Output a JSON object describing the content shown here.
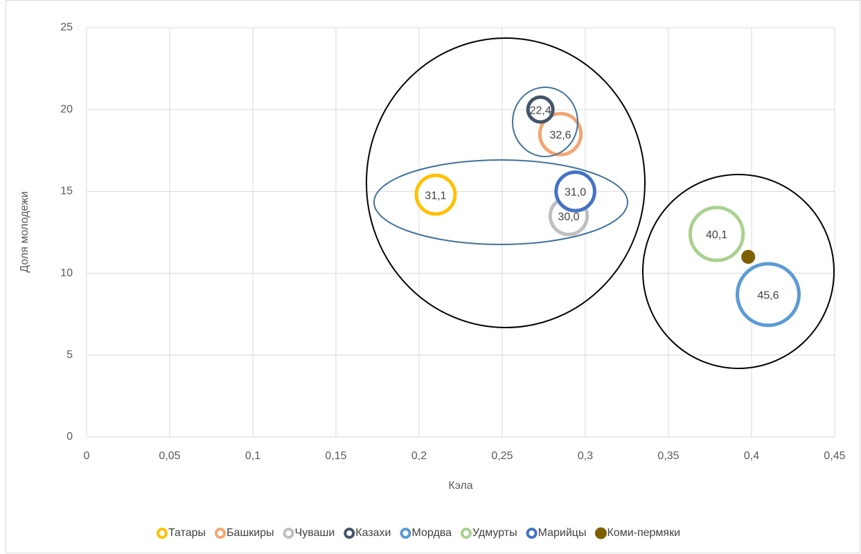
{
  "chart_data": {
    "type": "bubble",
    "x_label": "Кэла",
    "y_label": "Доля молодежи",
    "xlim": [
      0,
      0.45
    ],
    "xticks": [
      0,
      {
        "value": 0.05,
        "label": "0,05"
      },
      {
        "value": 0.1,
        "label": "0,1"
      },
      {
        "value": 0.15,
        "label": "0,15"
      },
      {
        "value": 0.2,
        "label": "0,2"
      },
      {
        "value": 0.25,
        "label": "0,25"
      },
      {
        "value": 0.3,
        "label": "0,3"
      },
      {
        "value": 0.35,
        "label": "0,35"
      },
      {
        "value": 0.4,
        "label": "0,4"
      },
      {
        "value": 0.45,
        "label": "0,45"
      }
    ],
    "ylim": [
      0,
      25
    ],
    "yticks": [
      0,
      5,
      10,
      15,
      20,
      25
    ],
    "grid": true,
    "legend": "bottom",
    "series": [
      {
        "name": "Татары",
        "color": "#ffc000",
        "x": [
          0.21
        ],
        "values": [
          14.8
        ],
        "sizes": [
          31.1
        ],
        "value_labels": [
          "31,1"
        ]
      },
      {
        "name": "Башкиры",
        "color": "#f4a672",
        "x": [
          0.285
        ],
        "values": [
          18.5
        ],
        "sizes": [
          32.6
        ],
        "value_labels": [
          "32,6"
        ]
      },
      {
        "name": "Чуваши",
        "color": "#bfbfbf",
        "x": [
          0.29
        ],
        "values": [
          13.5
        ],
        "sizes": [
          30.0
        ],
        "value_labels": [
          "30,0"
        ]
      },
      {
        "name": "Казахи",
        "color": "#44546a",
        "x": [
          0.273
        ],
        "values": [
          20.0
        ],
        "sizes": [
          22.4
        ],
        "value_labels": [
          "22,4"
        ]
      },
      {
        "name": "Мордва",
        "color": "#5b9bd5",
        "x": [
          0.41
        ],
        "values": [
          8.7
        ],
        "sizes": [
          45.6
        ],
        "value_labels": [
          "45,6"
        ]
      },
      {
        "name": "Удмурты",
        "color": "#a9d18e",
        "x": [
          0.379
        ],
        "values": [
          12.4
        ],
        "sizes": [
          40.1
        ],
        "value_labels": [
          "40,1"
        ]
      },
      {
        "name": "Марийцы",
        "color": "#4472c4",
        "x": [
          0.294
        ],
        "values": [
          15.0
        ],
        "sizes": [
          31.0
        ],
        "value_labels": [
          "31,0"
        ]
      },
      {
        "name": "Коми-пермяки",
        "color": "#7f6000",
        "x": [
          0.398
        ],
        "values": [
          11.0
        ],
        "sizes": [
          15
        ],
        "value_labels": [
          null
        ],
        "filled": true
      }
    ]
  }
}
